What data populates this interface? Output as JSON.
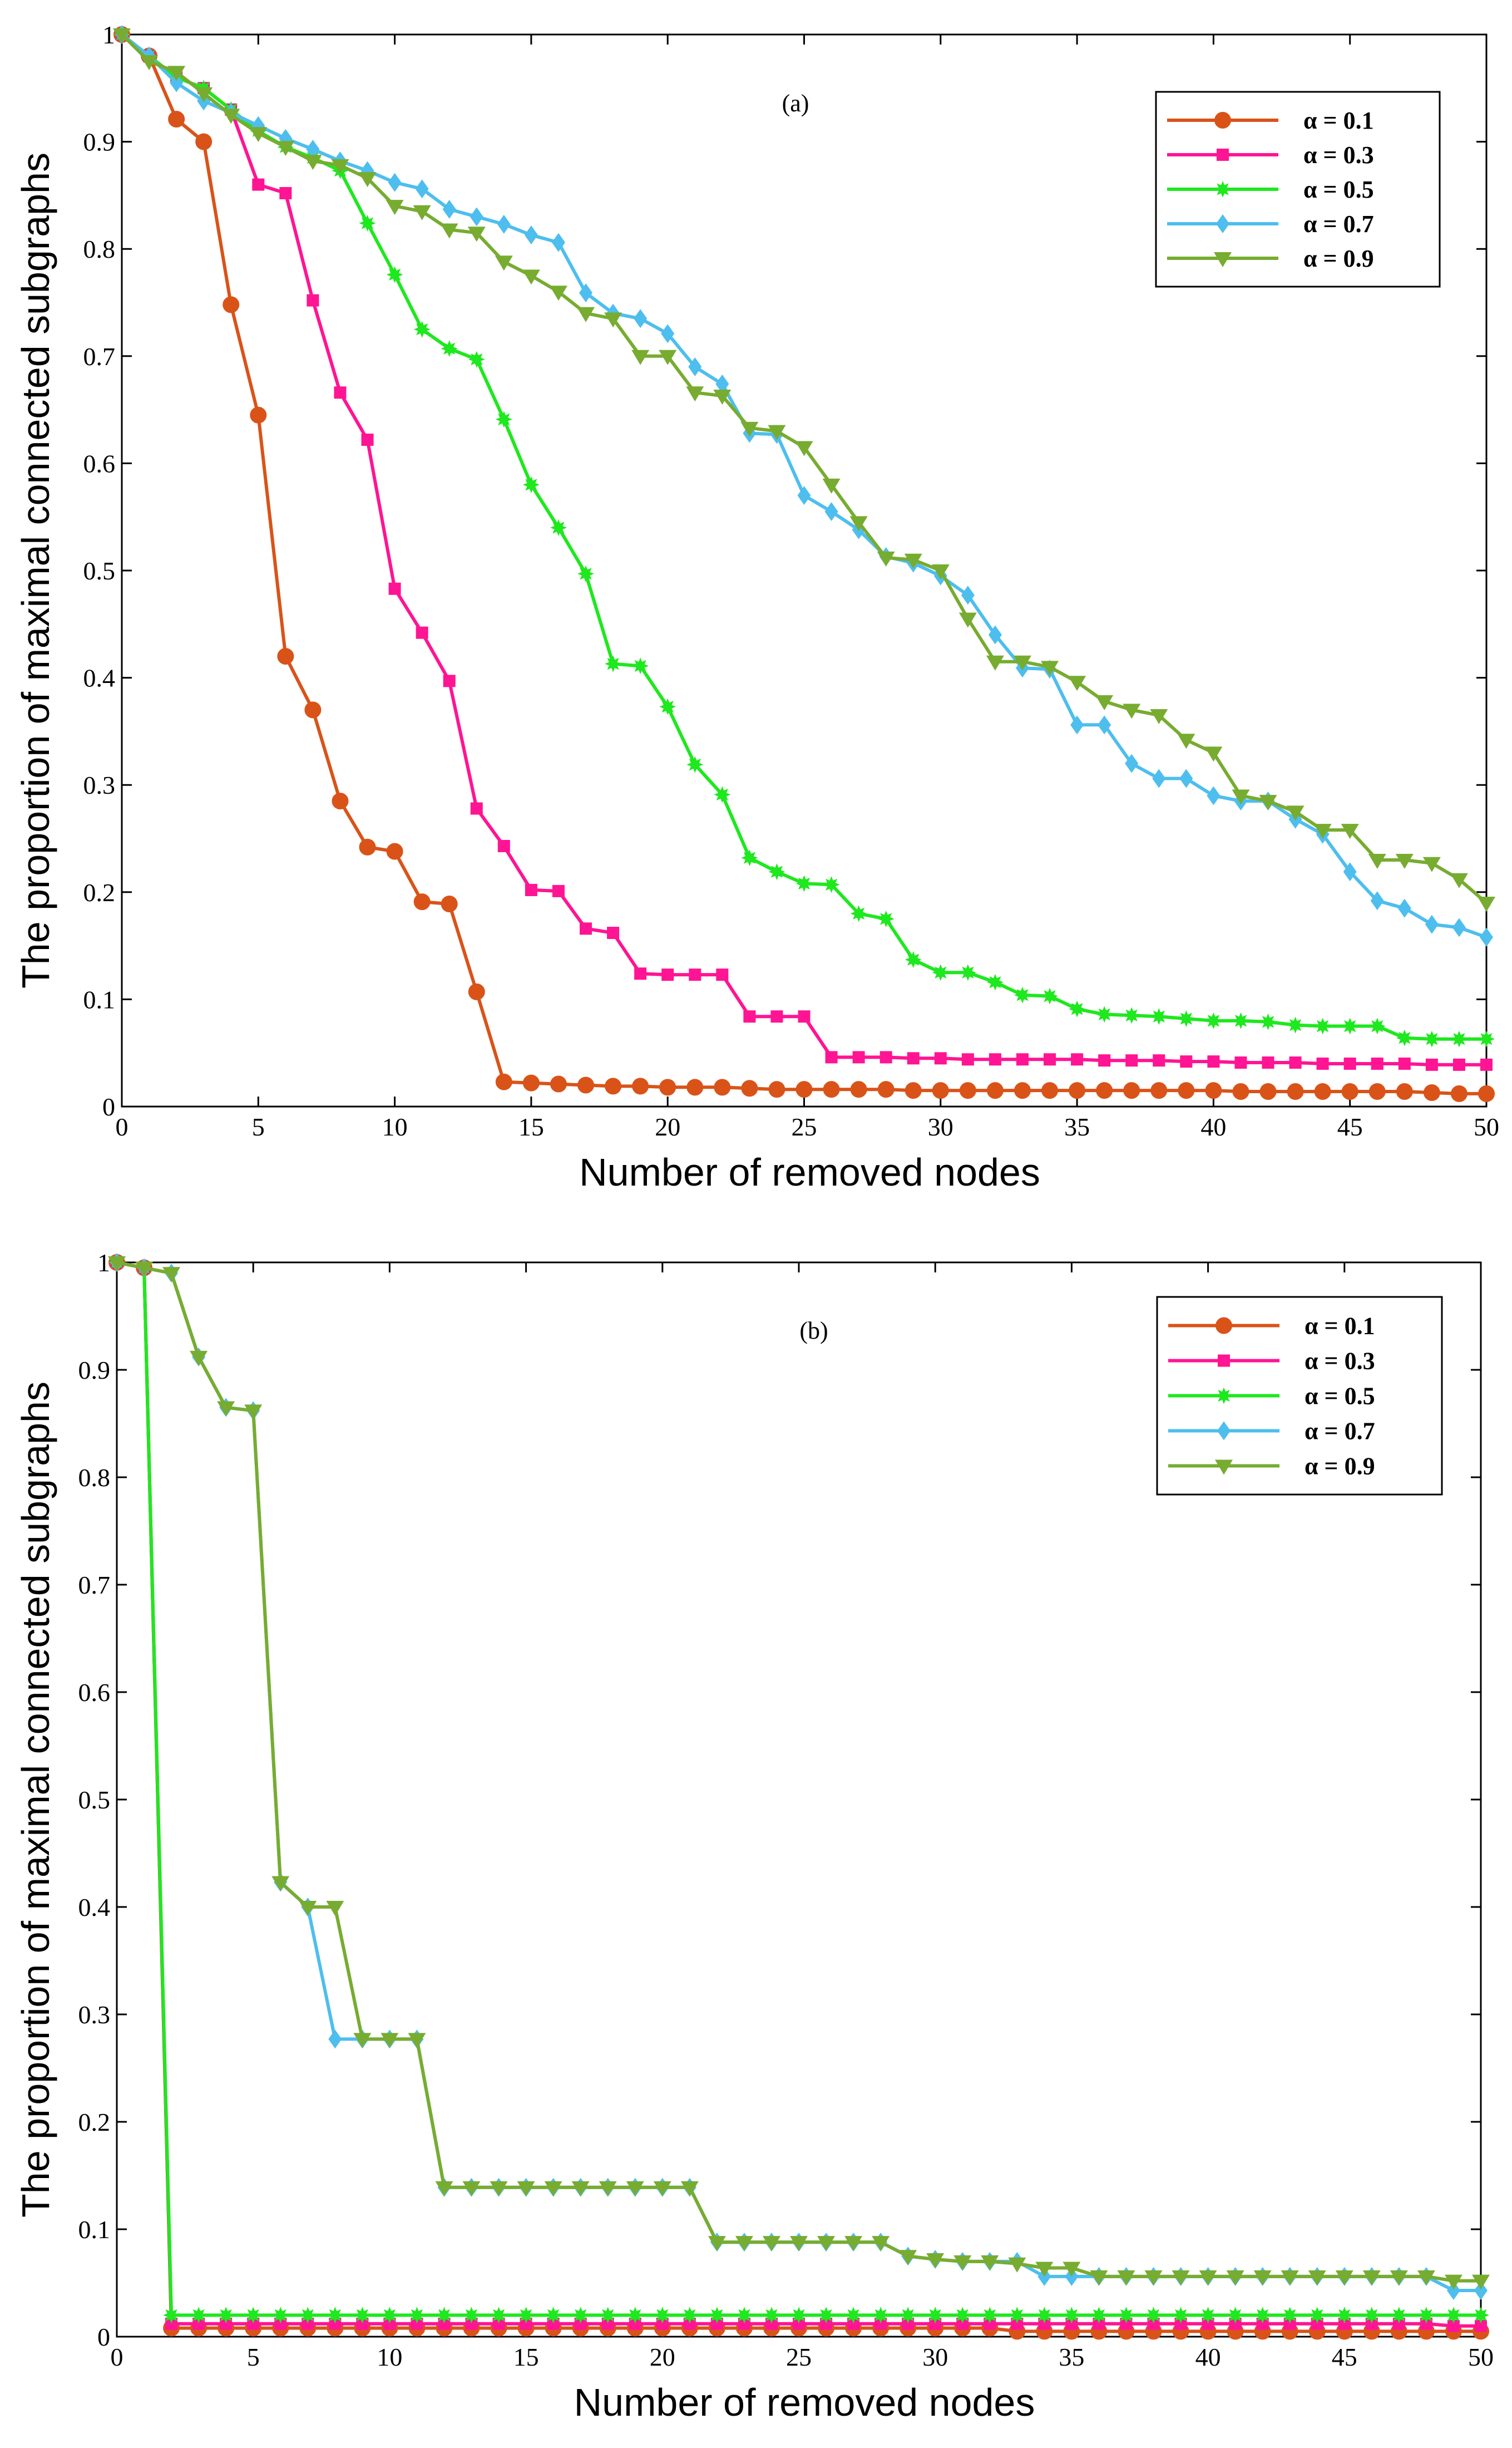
{
  "colors": {
    "alpha_0_1": "#d95319",
    "alpha_0_3": "#ff1493",
    "alpha_0_5": "#1ee81e",
    "alpha_0_7": "#4dbeee",
    "alpha_0_9": "#77ac30"
  },
  "chart_data": [
    {
      "panel": "(a)",
      "type": "line",
      "xlabel": "Number of removed nodes",
      "ylabel": "The proportion of maximal connected subgraphs",
      "xlim": [
        0,
        50
      ],
      "ylim": [
        0,
        1
      ],
      "xticks": [
        0,
        5,
        10,
        15,
        20,
        25,
        30,
        35,
        40,
        45,
        50
      ],
      "yticks": [
        0,
        0.1,
        0.2,
        0.3,
        0.4,
        0.5,
        0.6,
        0.7,
        0.8,
        0.9,
        1
      ],
      "ytick_labels": [
        "0",
        "0.1",
        "0.2",
        "0.3",
        "0.4",
        "0.5",
        "0.6",
        "0.7",
        "0.8",
        "0.9",
        "1"
      ],
      "legend_position": "top-right",
      "x": [
        0,
        1,
        2,
        3,
        4,
        5,
        6,
        7,
        8,
        9,
        10,
        11,
        12,
        13,
        14,
        15,
        16,
        17,
        18,
        19,
        20,
        21,
        22,
        23,
        24,
        25,
        26,
        27,
        28,
        29,
        30,
        31,
        32,
        33,
        34,
        35,
        36,
        37,
        38,
        39,
        40,
        41,
        42,
        43,
        44,
        45,
        46,
        47,
        48,
        49,
        50
      ],
      "series": [
        {
          "name": "α = 0.1",
          "alpha_value": "0.1",
          "color_key": "alpha_0_1",
          "marker": "circle",
          "values": [
            1,
            0.98,
            0.921,
            0.9,
            0.748,
            0.645,
            0.42,
            0.37,
            0.285,
            0.242,
            0.238,
            0.191,
            0.189,
            0.107,
            0.023,
            0.022,
            0.021,
            0.02,
            0.019,
            0.019,
            0.018,
            0.018,
            0.018,
            0.017,
            0.016,
            0.016,
            0.016,
            0.016,
            0.016,
            0.015,
            0.015,
            0.015,
            0.015,
            0.015,
            0.015,
            0.015,
            0.015,
            0.015,
            0.015,
            0.015,
            0.015,
            0.014,
            0.014,
            0.014,
            0.014,
            0.014,
            0.014,
            0.014,
            0.013,
            0.012,
            0.012
          ]
        },
        {
          "name": "α = 0.3",
          "alpha_value": "0.3",
          "color_key": "alpha_0_3",
          "marker": "square",
          "values": [
            1,
            0.98,
            0.96,
            0.95,
            0.93,
            0.86,
            0.852,
            0.752,
            0.666,
            0.622,
            0.483,
            0.442,
            0.397,
            0.278,
            0.243,
            0.202,
            0.201,
            0.166,
            0.162,
            0.124,
            0.123,
            0.123,
            0.123,
            0.084,
            0.084,
            0.084,
            0.046,
            0.046,
            0.046,
            0.045,
            0.045,
            0.044,
            0.044,
            0.044,
            0.044,
            0.044,
            0.043,
            0.043,
            0.043,
            0.042,
            0.042,
            0.041,
            0.041,
            0.041,
            0.04,
            0.04,
            0.04,
            0.04,
            0.039,
            0.039,
            0.039
          ]
        },
        {
          "name": "α = 0.5",
          "alpha_value": "0.5",
          "color_key": "alpha_0_5",
          "marker": "star",
          "values": [
            1,
            0.98,
            0.96,
            0.95,
            0.93,
            0.91,
            0.895,
            0.885,
            0.873,
            0.824,
            0.776,
            0.725,
            0.707,
            0.697,
            0.641,
            0.58,
            0.54,
            0.497,
            0.413,
            0.411,
            0.373,
            0.319,
            0.291,
            0.232,
            0.219,
            0.208,
            0.207,
            0.18,
            0.175,
            0.137,
            0.125,
            0.125,
            0.116,
            0.104,
            0.103,
            0.091,
            0.086,
            0.085,
            0.084,
            0.082,
            0.08,
            0.08,
            0.079,
            0.076,
            0.075,
            0.075,
            0.075,
            0.064,
            0.063,
            0.063,
            0.063
          ]
        },
        {
          "name": "α = 0.7",
          "alpha_value": "0.7",
          "color_key": "alpha_0_7",
          "marker": "diamond",
          "values": [
            1,
            0.98,
            0.955,
            0.938,
            0.927,
            0.915,
            0.903,
            0.893,
            0.882,
            0.873,
            0.862,
            0.856,
            0.837,
            0.83,
            0.823,
            0.813,
            0.806,
            0.759,
            0.74,
            0.735,
            0.721,
            0.69,
            0.674,
            0.628,
            0.627,
            0.57,
            0.555,
            0.538,
            0.513,
            0.507,
            0.495,
            0.477,
            0.44,
            0.409,
            0.408,
            0.356,
            0.356,
            0.32,
            0.306,
            0.306,
            0.29,
            0.285,
            0.285,
            0.268,
            0.254,
            0.219,
            0.192,
            0.185,
            0.17,
            0.167,
            0.158
          ]
        },
        {
          "name": "α = 0.9",
          "alpha_value": "0.9",
          "color_key": "alpha_0_9",
          "marker": "triangle-down",
          "values": [
            1,
            0.975,
            0.965,
            0.945,
            0.925,
            0.908,
            0.895,
            0.882,
            0.878,
            0.866,
            0.84,
            0.835,
            0.818,
            0.815,
            0.788,
            0.775,
            0.76,
            0.74,
            0.735,
            0.7,
            0.7,
            0.666,
            0.663,
            0.633,
            0.63,
            0.615,
            0.58,
            0.545,
            0.512,
            0.51,
            0.5,
            0.455,
            0.415,
            0.415,
            0.41,
            0.396,
            0.378,
            0.37,
            0.365,
            0.342,
            0.33,
            0.29,
            0.285,
            0.275,
            0.258,
            0.258,
            0.23,
            0.23,
            0.227,
            0.212,
            0.19
          ]
        }
      ]
    },
    {
      "panel": "(b)",
      "type": "line",
      "xlabel": "Number of removed nodes",
      "ylabel": "The proportion of maximal connected subgraphs",
      "xlim": [
        0,
        50
      ],
      "ylim": [
        0,
        1
      ],
      "xticks": [
        0,
        5,
        10,
        15,
        20,
        25,
        30,
        35,
        40,
        45,
        50
      ],
      "yticks": [
        0,
        0.1,
        0.2,
        0.3,
        0.4,
        0.5,
        0.6,
        0.7,
        0.8,
        0.9,
        1
      ],
      "ytick_labels": [
        "0",
        "0.1",
        "0.2",
        "0.3",
        "0.4",
        "0.5",
        "0.6",
        "0.7",
        "0.8",
        "0.9",
        "1"
      ],
      "legend_position": "top-right",
      "x": [
        0,
        1,
        2,
        3,
        4,
        5,
        6,
        7,
        8,
        9,
        10,
        11,
        12,
        13,
        14,
        15,
        16,
        17,
        18,
        19,
        20,
        21,
        22,
        23,
        24,
        25,
        26,
        27,
        28,
        29,
        30,
        31,
        32,
        33,
        34,
        35,
        36,
        37,
        38,
        39,
        40,
        41,
        42,
        43,
        44,
        45,
        46,
        47,
        48,
        49,
        50
      ],
      "series": [
        {
          "name": "α = 0.1",
          "alpha_value": "0.1",
          "color_key": "alpha_0_1",
          "marker": "circle",
          "values": [
            1,
            0.995,
            0.008,
            0.008,
            0.008,
            0.008,
            0.008,
            0.008,
            0.008,
            0.008,
            0.008,
            0.008,
            0.008,
            0.008,
            0.008,
            0.008,
            0.008,
            0.008,
            0.008,
            0.008,
            0.008,
            0.008,
            0.008,
            0.008,
            0.008,
            0.008,
            0.008,
            0.008,
            0.008,
            0.008,
            0.008,
            0.008,
            0.008,
            0.005,
            0.005,
            0.005,
            0.005,
            0.005,
            0.005,
            0.005,
            0.005,
            0.005,
            0.005,
            0.005,
            0.005,
            0.005,
            0.005,
            0.005,
            0.005,
            0.005,
            0.005
          ]
        },
        {
          "name": "α = 0.3",
          "alpha_value": "0.3",
          "color_key": "alpha_0_3",
          "marker": "square",
          "values": [
            1,
            0.995,
            0.012,
            0.012,
            0.012,
            0.012,
            0.012,
            0.012,
            0.012,
            0.012,
            0.012,
            0.012,
            0.012,
            0.012,
            0.012,
            0.012,
            0.012,
            0.012,
            0.012,
            0.012,
            0.012,
            0.012,
            0.012,
            0.012,
            0.012,
            0.012,
            0.012,
            0.012,
            0.012,
            0.012,
            0.012,
            0.012,
            0.012,
            0.012,
            0.012,
            0.012,
            0.012,
            0.012,
            0.012,
            0.012,
            0.012,
            0.012,
            0.012,
            0.012,
            0.012,
            0.012,
            0.012,
            0.012,
            0.012,
            0.01,
            0.01
          ]
        },
        {
          "name": "α = 0.5",
          "alpha_value": "0.5",
          "color_key": "alpha_0_5",
          "marker": "star",
          "values": [
            1,
            0.995,
            0.02,
            0.02,
            0.02,
            0.02,
            0.02,
            0.02,
            0.02,
            0.02,
            0.02,
            0.02,
            0.02,
            0.02,
            0.02,
            0.02,
            0.02,
            0.02,
            0.02,
            0.02,
            0.02,
            0.02,
            0.02,
            0.02,
            0.02,
            0.02,
            0.02,
            0.02,
            0.02,
            0.02,
            0.02,
            0.02,
            0.02,
            0.02,
            0.02,
            0.02,
            0.02,
            0.02,
            0.02,
            0.02,
            0.02,
            0.02,
            0.02,
            0.02,
            0.02,
            0.02,
            0.02,
            0.02,
            0.02,
            0.02,
            0.02
          ]
        },
        {
          "name": "α = 0.7",
          "alpha_value": "0.7",
          "color_key": "alpha_0_7",
          "marker": "diamond",
          "values": [
            1,
            0.995,
            0.99,
            0.912,
            0.865,
            0.862,
            0.423,
            0.4,
            0.277,
            0.277,
            0.277,
            0.277,
            0.139,
            0.139,
            0.139,
            0.139,
            0.139,
            0.139,
            0.139,
            0.139,
            0.139,
            0.139,
            0.088,
            0.088,
            0.088,
            0.088,
            0.088,
            0.088,
            0.088,
            0.075,
            0.072,
            0.07,
            0.07,
            0.07,
            0.056,
            0.056,
            0.056,
            0.056,
            0.056,
            0.056,
            0.056,
            0.056,
            0.056,
            0.056,
            0.056,
            0.056,
            0.056,
            0.056,
            0.056,
            0.043,
            0.043
          ]
        },
        {
          "name": "α = 0.9",
          "alpha_value": "0.9",
          "color_key": "alpha_0_9",
          "marker": "triangle-down",
          "values": [
            1,
            0.995,
            0.99,
            0.912,
            0.865,
            0.862,
            0.423,
            0.4,
            0.4,
            0.277,
            0.277,
            0.277,
            0.139,
            0.139,
            0.139,
            0.139,
            0.139,
            0.139,
            0.139,
            0.139,
            0.139,
            0.139,
            0.088,
            0.088,
            0.088,
            0.088,
            0.088,
            0.088,
            0.088,
            0.075,
            0.072,
            0.07,
            0.07,
            0.068,
            0.064,
            0.064,
            0.056,
            0.056,
            0.056,
            0.056,
            0.056,
            0.056,
            0.056,
            0.056,
            0.056,
            0.056,
            0.056,
            0.056,
            0.056,
            0.052,
            0.052
          ]
        }
      ]
    }
  ]
}
